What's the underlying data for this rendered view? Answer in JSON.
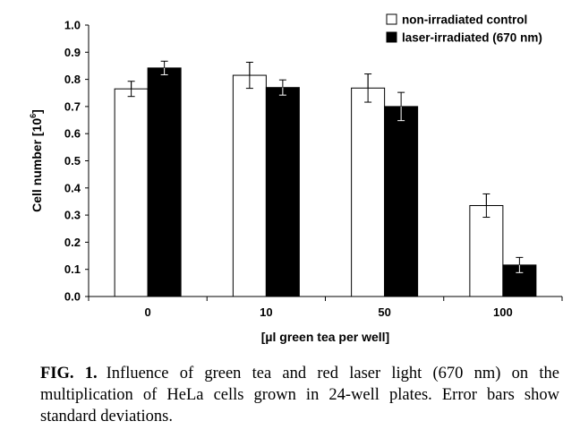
{
  "chart_data": {
    "type": "bar",
    "xlabel": "[µl green tea per well]",
    "ylabel_main": "Cell number [10",
    "ylabel_sup": "6",
    "ylabel_close": "]",
    "ylim": [
      0,
      1.0
    ],
    "yticks": [
      "0.0",
      "0.1",
      "0.2",
      "0.3",
      "0.4",
      "0.5",
      "0.6",
      "0.7",
      "0.8",
      "0.9",
      "1.0"
    ],
    "categories": [
      "0",
      "10",
      "50",
      "100"
    ],
    "legend_position": "top-right",
    "grid": false,
    "series": [
      {
        "name": "non-irradiated control",
        "color": "#ffffff",
        "values": [
          0.765,
          0.815,
          0.768,
          0.335
        ],
        "errors": [
          0.028,
          0.048,
          0.052,
          0.043
        ]
      },
      {
        "name": "laser-irradiated (670 nm)",
        "color": "#000000",
        "values": [
          0.842,
          0.77,
          0.7,
          0.116
        ],
        "errors": [
          0.025,
          0.028,
          0.052,
          0.028
        ]
      }
    ]
  },
  "caption": {
    "label": "FIG. 1.",
    "text": "Influence of green tea and red laser light (670 nm) on the multiplication of HeLa cells grown in 24-well plates. Error bars show standard deviations."
  }
}
